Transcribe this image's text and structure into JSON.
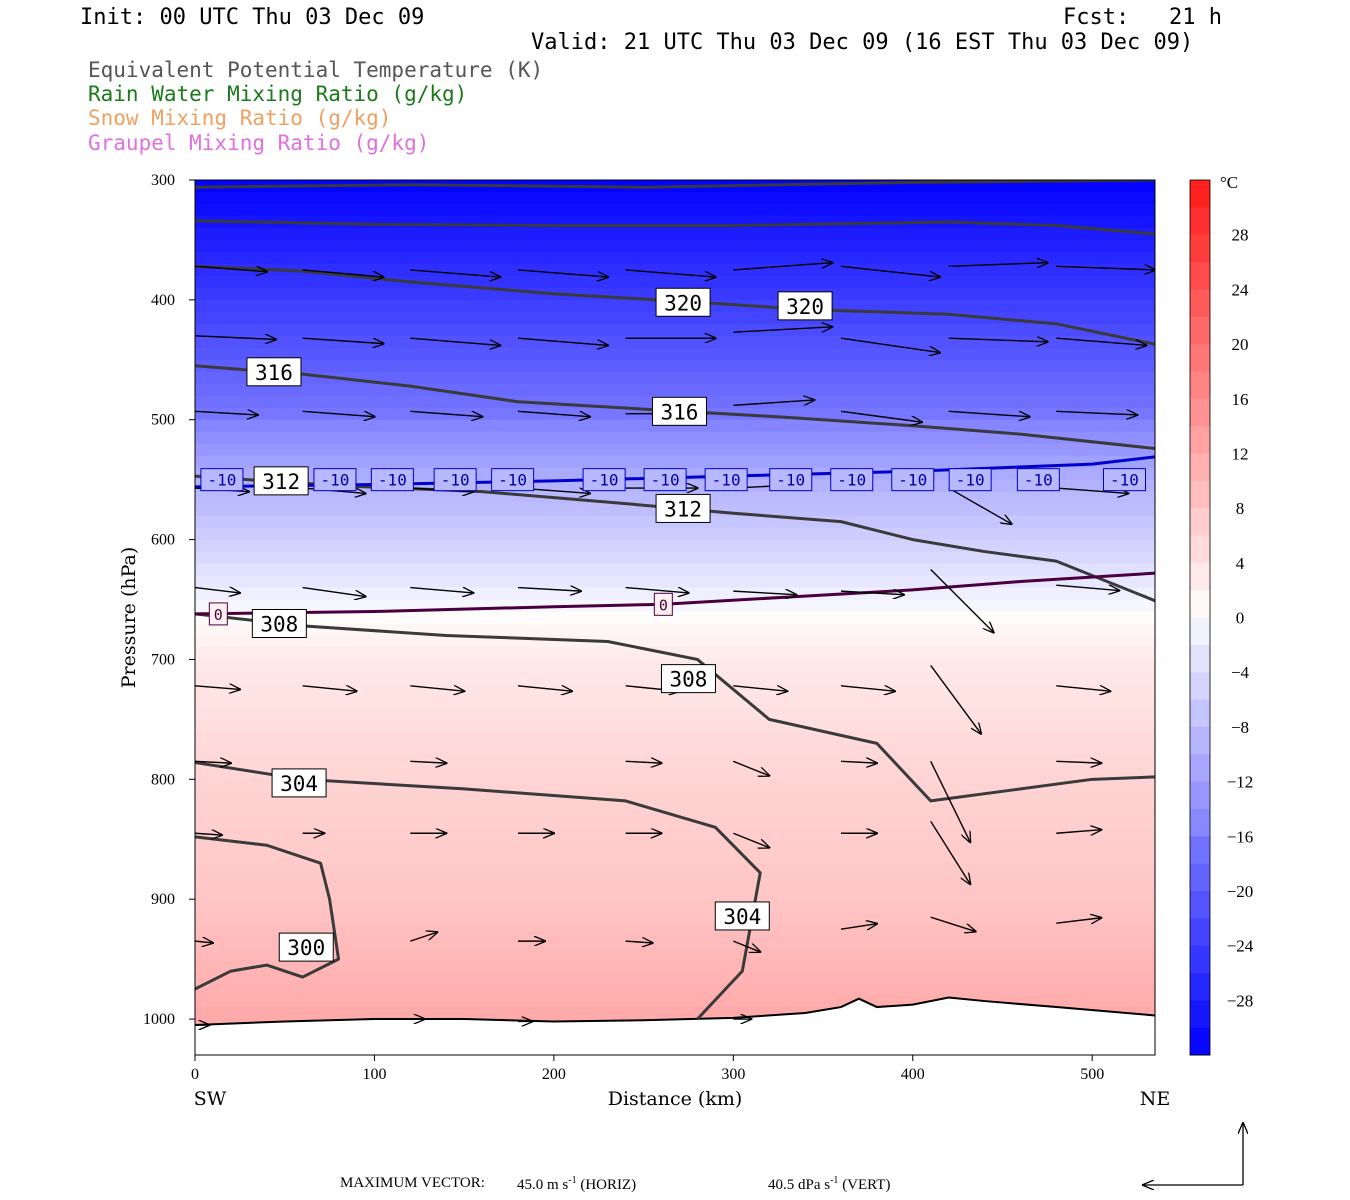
{
  "header": {
    "init": "Init: 00 UTC Thu 03 Dec 09",
    "fcst": "Fcst:   21 h",
    "valid": "Valid: 21 UTC Thu 03 Dec 09 (16 EST Thu 03 Dec 09)"
  },
  "legend": [
    {
      "label": "Equivalent Potential Temperature (K)",
      "color": "#555555"
    },
    {
      "label": "Rain Water Mixing Ratio (g/kg)",
      "color": "#1a7a1a"
    },
    {
      "label": "Snow Mixing Ratio (g/kg)",
      "color": "#f0a060"
    },
    {
      "label": "Graupel Mixing Ratio (g/kg)",
      "color": "#e070e0"
    }
  ],
  "chart_data": {
    "type": "heatmap",
    "xlabel": "Distance (km)",
    "ylabel": "Pressure (hPa)",
    "xlim": [
      0,
      535
    ],
    "ylim": [
      1030,
      300
    ],
    "x_ticks": [
      0,
      100,
      200,
      300,
      400,
      500
    ],
    "y_ticks": [
      300,
      400,
      500,
      600,
      700,
      800,
      900,
      1000
    ],
    "x_end_labels": {
      "left": "SW",
      "right": "NE"
    },
    "colorbar": {
      "unit": "°C",
      "ticks": [
        28,
        24,
        20,
        16,
        12,
        8,
        4,
        0,
        -4,
        -8,
        -12,
        -16,
        -20,
        -24,
        -28
      ],
      "range": [
        -32,
        32
      ]
    },
    "temperature_profile": {
      "pressure": [
        300,
        400,
        500,
        550,
        620,
        660,
        700,
        800,
        900,
        1000
      ],
      "temp_c": [
        -32,
        -24,
        -16,
        -10,
        -4,
        0,
        3,
        6,
        8,
        12
      ]
    },
    "theta_e_contours": [
      {
        "value": 320,
        "labels": [
          [
            272,
            402
          ],
          [
            340,
            405
          ]
        ],
        "points": [
          [
            0,
            372
          ],
          [
            60,
            376
          ],
          [
            120,
            385
          ],
          [
            200,
            395
          ],
          [
            280,
            402
          ],
          [
            340,
            408
          ],
          [
            420,
            412
          ],
          [
            480,
            420
          ],
          [
            535,
            437
          ]
        ]
      },
      {
        "value": 316,
        "labels": [
          [
            44,
            460
          ],
          [
            270,
            493
          ]
        ],
        "points": [
          [
            0,
            455
          ],
          [
            60,
            462
          ],
          [
            120,
            472
          ],
          [
            180,
            485
          ],
          [
            260,
            492
          ],
          [
            330,
            498
          ],
          [
            400,
            505
          ],
          [
            460,
            512
          ],
          [
            535,
            524
          ]
        ]
      },
      {
        "value": 312,
        "labels": [
          [
            48,
            551
          ],
          [
            272,
            574
          ]
        ],
        "points": [
          [
            0,
            547
          ],
          [
            80,
            555
          ],
          [
            160,
            560
          ],
          [
            240,
            570
          ],
          [
            300,
            578
          ],
          [
            360,
            585
          ],
          [
            400,
            600
          ],
          [
            440,
            610
          ],
          [
            480,
            618
          ],
          [
            535,
            651
          ]
        ]
      },
      {
        "value": 308,
        "labels": [
          [
            47,
            670
          ],
          [
            275,
            716
          ]
        ],
        "points": [
          [
            0,
            662
          ],
          [
            60,
            672
          ],
          [
            140,
            680
          ],
          [
            230,
            685
          ],
          [
            280,
            700
          ],
          [
            320,
            750
          ],
          [
            380,
            770
          ],
          [
            410,
            818
          ],
          [
            450,
            810
          ],
          [
            500,
            800
          ],
          [
            535,
            798
          ]
        ]
      },
      {
        "value": 304,
        "labels": [
          [
            58,
            803
          ],
          [
            305,
            914
          ]
        ],
        "points": [
          [
            0,
            786
          ],
          [
            60,
            800
          ],
          [
            150,
            808
          ],
          [
            240,
            818
          ],
          [
            290,
            840
          ],
          [
            315,
            878
          ],
          [
            305,
            960
          ],
          [
            280,
            1000
          ]
        ]
      },
      {
        "value": 300,
        "labels": [
          [
            62,
            940
          ]
        ],
        "points": [
          [
            0,
            975
          ],
          [
            20,
            960
          ],
          [
            40,
            955
          ],
          [
            60,
            965
          ],
          [
            80,
            950
          ],
          [
            75,
            900
          ],
          [
            70,
            870
          ],
          [
            40,
            855
          ],
          [
            0,
            848
          ]
        ]
      },
      {
        "value": 324,
        "labels": [],
        "points": [
          [
            0,
            334
          ],
          [
            100,
            337
          ],
          [
            200,
            338
          ],
          [
            300,
            338
          ],
          [
            420,
            335
          ],
          [
            480,
            338
          ],
          [
            535,
            345
          ]
        ]
      },
      {
        "value": 328,
        "labels": [],
        "points": [
          [
            0,
            306
          ],
          [
            120,
            304
          ],
          [
            250,
            306
          ],
          [
            400,
            302
          ],
          [
            535,
            300
          ]
        ]
      }
    ],
    "isotherm_labels": {
      "minus10": {
        "value": "-10",
        "x": [
          15,
          78,
          110,
          145,
          177,
          228,
          262,
          296,
          332,
          366,
          400,
          432,
          470,
          518
        ],
        "pressure": 550
      },
      "zero": {
        "value": "0",
        "x": [
          13,
          261
        ],
        "pressure": [
          662,
          654
        ]
      }
    },
    "isotherm_lines": {
      "minus10": [
        [
          0,
          556
        ],
        [
          100,
          554
        ],
        [
          200,
          551
        ],
        [
          300,
          547
        ],
        [
          400,
          543
        ],
        [
          500,
          537
        ],
        [
          535,
          531
        ]
      ],
      "zero": [
        [
          0,
          662
        ],
        [
          100,
          660
        ],
        [
          200,
          656
        ],
        [
          260,
          654
        ],
        [
          330,
          648
        ],
        [
          400,
          642
        ],
        [
          460,
          635
        ],
        [
          535,
          628
        ]
      ]
    },
    "terrain_pressure": [
      [
        0,
        1005
      ],
      [
        50,
        1002
      ],
      [
        100,
        1000
      ],
      [
        150,
        1000
      ],
      [
        200,
        1002
      ],
      [
        250,
        1001
      ],
      [
        300,
        999
      ],
      [
        340,
        995
      ],
      [
        360,
        990
      ],
      [
        370,
        983
      ],
      [
        380,
        990
      ],
      [
        400,
        988
      ],
      [
        420,
        982
      ],
      [
        440,
        985
      ],
      [
        480,
        990
      ],
      [
        535,
        997
      ]
    ],
    "wind_vectors": [
      {
        "x": 0,
        "p": 372,
        "u": 40,
        "w": -3
      },
      {
        "x": 60,
        "p": 375,
        "u": 45,
        "w": -4
      },
      {
        "x": 120,
        "p": 375,
        "u": 50,
        "w": -4
      },
      {
        "x": 180,
        "p": 375,
        "u": 50,
        "w": -4
      },
      {
        "x": 240,
        "p": 375,
        "u": 50,
        "w": -4
      },
      {
        "x": 300,
        "p": 375,
        "u": 55,
        "w": 4
      },
      {
        "x": 360,
        "p": 372,
        "u": 55,
        "w": -6
      },
      {
        "x": 420,
        "p": 372,
        "u": 55,
        "w": 2
      },
      {
        "x": 480,
        "p": 372,
        "u": 55,
        "w": -2
      },
      {
        "x": 0,
        "p": 430,
        "u": 45,
        "w": -2
      },
      {
        "x": 60,
        "p": 432,
        "u": 45,
        "w": -3
      },
      {
        "x": 120,
        "p": 432,
        "u": 50,
        "w": -4
      },
      {
        "x": 180,
        "p": 432,
        "u": 50,
        "w": -4
      },
      {
        "x": 240,
        "p": 432,
        "u": 50,
        "w": 0
      },
      {
        "x": 300,
        "p": 427,
        "u": 55,
        "w": 3
      },
      {
        "x": 360,
        "p": 432,
        "u": 55,
        "w": -8
      },
      {
        "x": 420,
        "p": 432,
        "u": 55,
        "w": -2
      },
      {
        "x": 480,
        "p": 432,
        "u": 50,
        "w": -4
      },
      {
        "x": 0,
        "p": 493,
        "u": 35,
        "w": -2
      },
      {
        "x": 60,
        "p": 493,
        "u": 40,
        "w": -3
      },
      {
        "x": 120,
        "p": 493,
        "u": 40,
        "w": -3
      },
      {
        "x": 180,
        "p": 493,
        "u": 40,
        "w": -3
      },
      {
        "x": 240,
        "p": 495,
        "u": 45,
        "w": 0
      },
      {
        "x": 300,
        "p": 488,
        "u": 45,
        "w": 3
      },
      {
        "x": 360,
        "p": 493,
        "u": 45,
        "w": -6
      },
      {
        "x": 420,
        "p": 493,
        "u": 45,
        "w": -3
      },
      {
        "x": 480,
        "p": 493,
        "u": 45,
        "w": -2
      },
      {
        "x": 0,
        "p": 557,
        "u": 30,
        "w": -2
      },
      {
        "x": 60,
        "p": 557,
        "u": 35,
        "w": -3
      },
      {
        "x": 120,
        "p": 557,
        "u": 35,
        "w": -2
      },
      {
        "x": 180,
        "p": 557,
        "u": 40,
        "w": -3
      },
      {
        "x": 240,
        "p": 557,
        "u": 40,
        "w": 0
      },
      {
        "x": 300,
        "p": 557,
        "u": 40,
        "w": 2
      },
      {
        "x": 420,
        "p": 557,
        "u": 35,
        "w": -20
      },
      {
        "x": 480,
        "p": 557,
        "u": 40,
        "w": -3
      },
      {
        "x": 0,
        "p": 640,
        "u": 25,
        "w": -3
      },
      {
        "x": 60,
        "p": 640,
        "u": 35,
        "w": -5
      },
      {
        "x": 120,
        "p": 640,
        "u": 35,
        "w": -3
      },
      {
        "x": 180,
        "p": 640,
        "u": 35,
        "w": -2
      },
      {
        "x": 240,
        "p": 640,
        "u": 35,
        "w": -3
      },
      {
        "x": 300,
        "p": 643,
        "u": 35,
        "w": -2
      },
      {
        "x": 360,
        "p": 643,
        "u": 35,
        "w": -2
      },
      {
        "x": 410,
        "p": 625,
        "u": 35,
        "w": -35
      },
      {
        "x": 480,
        "p": 638,
        "u": 35,
        "w": -3
      },
      {
        "x": 0,
        "p": 722,
        "u": 25,
        "w": -2
      },
      {
        "x": 60,
        "p": 722,
        "u": 30,
        "w": -3
      },
      {
        "x": 120,
        "p": 722,
        "u": 30,
        "w": -3
      },
      {
        "x": 180,
        "p": 722,
        "u": 30,
        "w": -3
      },
      {
        "x": 240,
        "p": 722,
        "u": 30,
        "w": -3
      },
      {
        "x": 300,
        "p": 722,
        "u": 30,
        "w": -3
      },
      {
        "x": 360,
        "p": 722,
        "u": 30,
        "w": -3
      },
      {
        "x": 410,
        "p": 705,
        "u": 28,
        "w": -38
      },
      {
        "x": 480,
        "p": 722,
        "u": 30,
        "w": -3
      },
      {
        "x": 0,
        "p": 785,
        "u": 20,
        "w": -1
      },
      {
        "x": 120,
        "p": 785,
        "u": 20,
        "w": -1
      },
      {
        "x": 240,
        "p": 785,
        "u": 20,
        "w": -1
      },
      {
        "x": 300,
        "p": 785,
        "u": 20,
        "w": -8
      },
      {
        "x": 360,
        "p": 785,
        "u": 20,
        "w": -1
      },
      {
        "x": 410,
        "p": 785,
        "u": 22,
        "w": -45
      },
      {
        "x": 480,
        "p": 785,
        "u": 25,
        "w": -1
      },
      {
        "x": 0,
        "p": 845,
        "u": 15,
        "w": -1
      },
      {
        "x": 60,
        "p": 845,
        "u": 12,
        "w": 0
      },
      {
        "x": 120,
        "p": 845,
        "u": 20,
        "w": 0
      },
      {
        "x": 180,
        "p": 845,
        "u": 20,
        "w": 0
      },
      {
        "x": 240,
        "p": 845,
        "u": 20,
        "w": 0
      },
      {
        "x": 300,
        "p": 845,
        "u": 20,
        "w": -8
      },
      {
        "x": 360,
        "p": 845,
        "u": 20,
        "w": 0
      },
      {
        "x": 410,
        "p": 835,
        "u": 22,
        "w": -35
      },
      {
        "x": 480,
        "p": 845,
        "u": 25,
        "w": 2
      },
      {
        "x": 0,
        "p": 935,
        "u": 10,
        "w": -1
      },
      {
        "x": 60,
        "p": 935,
        "u": 15,
        "w": 0
      },
      {
        "x": 120,
        "p": 935,
        "u": 15,
        "w": 5
      },
      {
        "x": 180,
        "p": 935,
        "u": 15,
        "w": 0
      },
      {
        "x": 240,
        "p": 935,
        "u": 15,
        "w": -1
      },
      {
        "x": 300,
        "p": 935,
        "u": 15,
        "w": -6
      },
      {
        "x": 360,
        "p": 925,
        "u": 20,
        "w": 3
      },
      {
        "x": 410,
        "p": 915,
        "u": 25,
        "w": -8
      },
      {
        "x": 480,
        "p": 920,
        "u": 25,
        "w": 3
      },
      {
        "x": 0,
        "p": 1005,
        "u": 8,
        "w": 0
      },
      {
        "x": 120,
        "p": 1000,
        "u": 8,
        "w": 0
      },
      {
        "x": 180,
        "p": 1002,
        "u": 8,
        "w": 0
      },
      {
        "x": 300,
        "p": 1000,
        "u": 10,
        "w": 0
      }
    ]
  },
  "footer": {
    "max_vector_label": "MAXIMUM VECTOR:",
    "horiz": "45.0 m s",
    "horiz_unit": " (HORIZ)",
    "vert": "40.5 dPa s",
    "vert_unit": " (VERT)",
    "superscript": "-1"
  }
}
